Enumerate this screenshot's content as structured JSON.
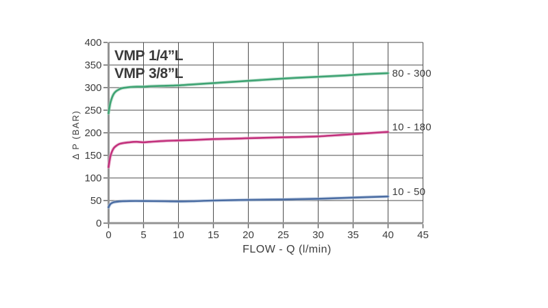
{
  "chart_data": {
    "type": "line",
    "title_lines": [
      {
        "model": "VMP",
        "size": "1/4”L"
      },
      {
        "model": "VMP",
        "size": "3/8”L"
      }
    ],
    "xlabel": "FLOW - Q (l/min)",
    "ylabel": "Δ P (BAR)",
    "xlim": [
      0,
      45
    ],
    "ylim": [
      0,
      400
    ],
    "x_ticks": [
      0,
      5,
      10,
      15,
      20,
      25,
      30,
      35,
      40,
      45
    ],
    "y_ticks": [
      0,
      50,
      100,
      150,
      200,
      250,
      300,
      350,
      400
    ],
    "grid": true,
    "legend_position": "right-of-line-end",
    "series": [
      {
        "name": "80 - 300",
        "color": "#3ea373",
        "halo_color": "#a9d6be",
        "label_dy": 0,
        "points": [
          [
            0,
            243
          ],
          [
            0.2,
            262
          ],
          [
            0.4,
            274
          ],
          [
            0.7,
            285
          ],
          [
            1,
            291
          ],
          [
            1.5,
            296
          ],
          [
            2,
            299
          ],
          [
            3,
            301
          ],
          [
            4,
            302
          ],
          [
            5,
            302
          ],
          [
            6,
            303
          ],
          [
            8,
            304
          ],
          [
            10,
            305
          ],
          [
            12,
            307
          ],
          [
            15,
            310
          ],
          [
            18,
            313
          ],
          [
            20,
            315
          ],
          [
            25,
            320
          ],
          [
            30,
            324
          ],
          [
            34,
            327
          ],
          [
            37,
            330
          ],
          [
            40,
            332
          ]
        ]
      },
      {
        "name": "10 - 180",
        "color": "#c2307c",
        "halo_color": "#e5a9c9",
        "label_dy": -7,
        "points": [
          [
            0,
            124
          ],
          [
            0.2,
            143
          ],
          [
            0.4,
            155
          ],
          [
            0.7,
            165
          ],
          [
            1,
            170
          ],
          [
            1.5,
            175
          ],
          [
            2,
            177
          ],
          [
            3,
            179
          ],
          [
            4,
            180
          ],
          [
            5,
            179
          ],
          [
            6,
            180
          ],
          [
            8,
            182
          ],
          [
            10,
            183
          ],
          [
            12,
            184
          ],
          [
            15,
            186
          ],
          [
            18,
            187
          ],
          [
            20,
            188
          ],
          [
            25,
            190
          ],
          [
            28,
            191
          ],
          [
            30,
            192
          ],
          [
            32,
            194
          ],
          [
            35,
            197
          ],
          [
            38,
            200
          ],
          [
            40,
            202
          ]
        ]
      },
      {
        "name": "10 - 50",
        "color": "#4b6da3",
        "halo_color": "#b0c2dc",
        "label_dy": -7,
        "points": [
          [
            0,
            35
          ],
          [
            0.2,
            41
          ],
          [
            0.4,
            44
          ],
          [
            0.7,
            46
          ],
          [
            1,
            47
          ],
          [
            1.5,
            48
          ],
          [
            2,
            48.5
          ],
          [
            3,
            49
          ],
          [
            5,
            49
          ],
          [
            8,
            48.5
          ],
          [
            10,
            48
          ],
          [
            12,
            48.5
          ],
          [
            15,
            50
          ],
          [
            20,
            51.5
          ],
          [
            25,
            52.5
          ],
          [
            30,
            54
          ],
          [
            35,
            56.5
          ],
          [
            40,
            59
          ]
        ]
      }
    ]
  },
  "style": {
    "background": "#ffffff",
    "grid_color": "#4b4b4b",
    "axis_color": "#939393",
    "tick_color": "#5a5a5a",
    "text_color": "#3c3c3c"
  }
}
